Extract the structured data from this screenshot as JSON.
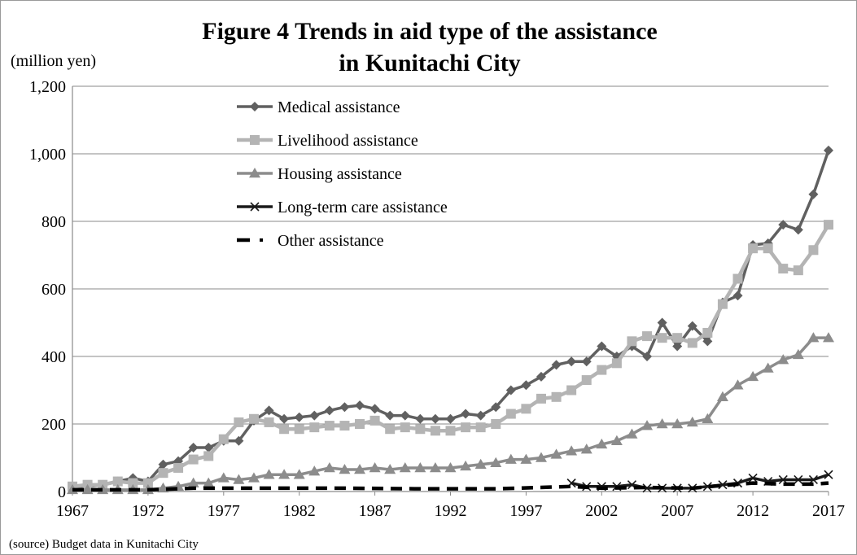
{
  "chart_data": {
    "type": "line",
    "title": "Figure 4 Trends in aid type of the assistance",
    "subtitle": "in Kunitachi City",
    "ylabel": "(million yen)",
    "source_note": "(source)  Budget data in Kunitachi City",
    "ylim": [
      0,
      1200
    ],
    "yticks": [
      "0",
      "200",
      "400",
      "600",
      "800",
      "1,000",
      "1,200"
    ],
    "xlim": [
      1967,
      2017
    ],
    "xticks": [
      "1967",
      "1972",
      "1977",
      "1982",
      "1987",
      "1992",
      "1997",
      "2002",
      "2007",
      "2012",
      "2017"
    ],
    "grid": "horizontal",
    "legend_position": "upper-left",
    "series": [
      {
        "name": "Medical assistance",
        "color": "#606060",
        "marker": "diamond",
        "x": [
          1967,
          1968,
          1969,
          1970,
          1971,
          1972,
          1973,
          1974,
          1975,
          1976,
          1977,
          1978,
          1979,
          1980,
          1981,
          1982,
          1983,
          1984,
          1985,
          1986,
          1987,
          1988,
          1989,
          1990,
          1991,
          1992,
          1993,
          1994,
          1995,
          1996,
          1997,
          1998,
          1999,
          2000,
          2001,
          2002,
          2003,
          2004,
          2005,
          2006,
          2007,
          2008,
          2009,
          2010,
          2011,
          2012,
          2013,
          2014,
          2015,
          2016,
          2017
        ],
        "values": [
          15,
          15,
          20,
          30,
          40,
          30,
          80,
          90,
          130,
          130,
          150,
          150,
          210,
          240,
          215,
          220,
          225,
          240,
          250,
          255,
          245,
          225,
          225,
          215,
          215,
          215,
          230,
          225,
          250,
          300,
          315,
          340,
          375,
          385,
          385,
          430,
          400,
          430,
          400,
          500,
          430,
          490,
          445,
          560,
          580,
          730,
          735,
          790,
          775,
          880,
          1010
        ]
      },
      {
        "name": "Livelihood assistance",
        "color": "#b4b4b4",
        "marker": "square",
        "x": [
          1967,
          1968,
          1969,
          1970,
          1971,
          1972,
          1973,
          1974,
          1975,
          1976,
          1977,
          1978,
          1979,
          1980,
          1981,
          1982,
          1983,
          1984,
          1985,
          1986,
          1987,
          1988,
          1989,
          1990,
          1991,
          1992,
          1993,
          1994,
          1995,
          1996,
          1997,
          1998,
          1999,
          2000,
          2001,
          2002,
          2003,
          2004,
          2005,
          2006,
          2007,
          2008,
          2009,
          2010,
          2011,
          2012,
          2013,
          2014,
          2015,
          2016,
          2017
        ],
        "values": [
          15,
          20,
          20,
          30,
          25,
          25,
          55,
          70,
          95,
          105,
          155,
          205,
          215,
          205,
          185,
          185,
          190,
          195,
          195,
          200,
          210,
          185,
          190,
          185,
          180,
          180,
          190,
          190,
          200,
          230,
          245,
          275,
          280,
          300,
          330,
          360,
          380,
          445,
          460,
          455,
          455,
          440,
          470,
          555,
          630,
          720,
          720,
          660,
          655,
          715,
          790
        ]
      },
      {
        "name": "Housing assistance",
        "color": "#8c8c8c",
        "marker": "triangle",
        "x": [
          1967,
          1968,
          1969,
          1970,
          1971,
          1972,
          1973,
          1974,
          1975,
          1976,
          1977,
          1978,
          1979,
          1980,
          1981,
          1982,
          1983,
          1984,
          1985,
          1986,
          1987,
          1988,
          1989,
          1990,
          1991,
          1992,
          1993,
          1994,
          1995,
          1996,
          1997,
          1998,
          1999,
          2000,
          2001,
          2002,
          2003,
          2004,
          2005,
          2006,
          2007,
          2008,
          2009,
          2010,
          2011,
          2012,
          2013,
          2014,
          2015,
          2016,
          2017
        ],
        "values": [
          5,
          5,
          5,
          5,
          5,
          5,
          10,
          15,
          25,
          25,
          40,
          35,
          40,
          50,
          50,
          50,
          60,
          70,
          65,
          65,
          70,
          65,
          70,
          70,
          70,
          70,
          75,
          80,
          85,
          95,
          95,
          100,
          110,
          120,
          125,
          140,
          150,
          170,
          195,
          200,
          200,
          205,
          215,
          280,
          315,
          340,
          365,
          390,
          405,
          455,
          455
        ]
      },
      {
        "name": "Long-term care assistance",
        "color": "#1a1a1a",
        "marker": "x",
        "x": [
          2000,
          2001,
          2002,
          2003,
          2004,
          2005,
          2006,
          2007,
          2008,
          2009,
          2010,
          2011,
          2012,
          2013,
          2014,
          2015,
          2016,
          2017
        ],
        "values": [
          25,
          15,
          15,
          15,
          20,
          10,
          10,
          10,
          10,
          15,
          20,
          25,
          40,
          30,
          35,
          35,
          35,
          50
        ]
      },
      {
        "name": "Other assistance",
        "color": "#000000",
        "marker": "none",
        "x": [
          1967,
          1972,
          1975,
          1977,
          1980,
          1985,
          1990,
          1995,
          2000,
          2002,
          2005,
          2008,
          2010,
          2012,
          2014,
          2016,
          2017
        ],
        "values": [
          5,
          5,
          10,
          10,
          10,
          10,
          8,
          8,
          15,
          10,
          12,
          10,
          18,
          25,
          22,
          22,
          25
        ]
      }
    ]
  }
}
